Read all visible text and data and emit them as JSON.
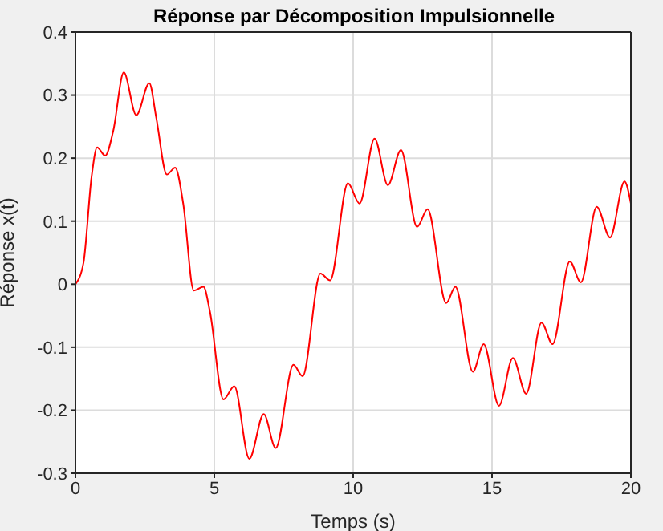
{
  "chart_data": {
    "type": "line",
    "title": "Réponse par Décomposition Impulsionnelle",
    "xlabel": "Temps (s)",
    "ylabel": "Réponse x(t)",
    "series": [
      {
        "color": "#ff0000",
        "x": [
          0,
          0.29,
          0.58,
          0.78,
          1.07,
          1.36,
          1.74,
          2.19,
          2.66,
          2.91,
          3.29,
          3.59,
          3.88,
          4.26,
          4.61,
          4.84,
          5.33,
          5.72,
          6.26,
          6.78,
          7.21,
          7.85,
          8.18,
          8.82,
          9.17,
          9.81,
          10.23,
          10.77,
          11.25,
          11.72,
          12.3,
          12.68,
          13.35,
          13.68,
          14.31,
          14.7,
          15.25,
          15.75,
          16.23,
          16.78,
          17.18,
          17.8,
          18.2,
          18.77,
          19.25,
          19.77,
          20
        ],
        "values": [
          0,
          0.034,
          0.17,
          0.217,
          0.204,
          0.243,
          0.336,
          0.268,
          0.319,
          0.264,
          0.174,
          0.185,
          0.128,
          -0.01,
          -0.004,
          -0.043,
          -0.183,
          -0.162,
          -0.277,
          -0.206,
          -0.26,
          -0.128,
          -0.146,
          0.017,
          0.006,
          0.16,
          0.128,
          0.231,
          0.157,
          0.213,
          0.091,
          0.119,
          -0.03,
          -0.004,
          -0.139,
          -0.095,
          -0.193,
          -0.117,
          -0.174,
          -0.061,
          -0.095,
          0.036,
          0.003,
          0.123,
          0.074,
          0.163,
          0.128
        ]
      }
    ],
    "xlim": [
      0,
      20
    ],
    "xticks": [
      0,
      5,
      10,
      15,
      20
    ],
    "ylim": [
      -0.3,
      0.4
    ],
    "yticks": [
      -0.3,
      -0.2,
      -0.1,
      0,
      0.1,
      0.2,
      0.3,
      0.4
    ],
    "grid": true,
    "legend": false,
    "marker": "none",
    "line_style": "solid"
  }
}
